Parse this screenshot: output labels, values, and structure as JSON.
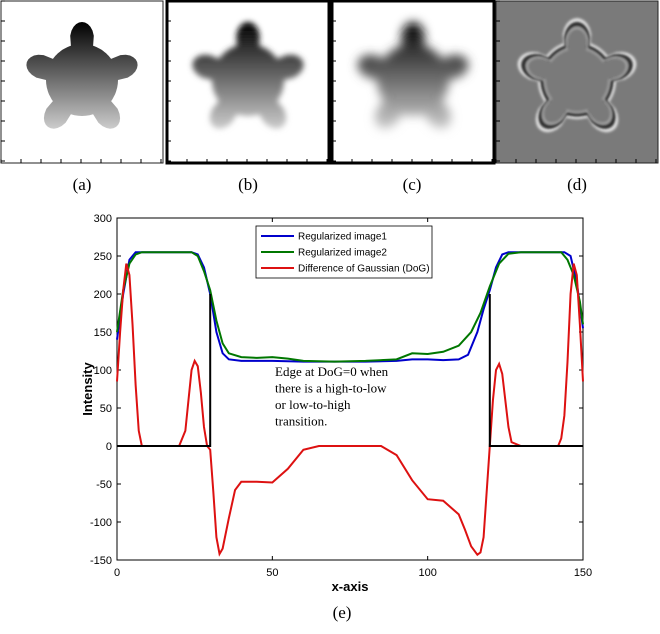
{
  "figure": {
    "panel_labels": [
      "(a)",
      "(b)",
      "(c)",
      "(d)"
    ],
    "chart_label": "(e)"
  },
  "chart_data": {
    "type": "line",
    "xlabel": "x-axis",
    "ylabel": "Intensity",
    "xlim": [
      0,
      150
    ],
    "xticks": [
      0,
      50,
      100,
      150
    ],
    "ylim": [
      -150,
      300
    ],
    "yticks": [
      -150,
      -100,
      -50,
      0,
      50,
      100,
      150,
      200,
      250,
      300
    ],
    "legend": "top-center",
    "annotation_lines": [
      "Edge at DoG=0 when",
      "there is a high-to-low",
      "or low-to-high",
      "transition."
    ],
    "series": [
      {
        "name": "Regularized image1",
        "color": "#0000cc",
        "x": [
          0,
          2,
          4,
          6,
          8,
          15,
          24,
          26,
          28,
          30,
          32,
          34,
          36,
          40,
          50,
          60,
          70,
          80,
          90,
          95,
          100,
          105,
          110,
          113,
          116,
          118,
          120,
          122,
          124,
          126,
          135,
          144,
          146,
          148,
          150
        ],
        "values": [
          140,
          200,
          245,
          255,
          255,
          255,
          255,
          252,
          235,
          200,
          150,
          122,
          114,
          112,
          112,
          111,
          111,
          111,
          112,
          114,
          114,
          113,
          114,
          120,
          150,
          180,
          205,
          235,
          252,
          255,
          255,
          255,
          250,
          215,
          155
        ]
      },
      {
        "name": "Regularized image2",
        "color": "#007700",
        "x": [
          0,
          2,
          4,
          6,
          8,
          15,
          24,
          26,
          28,
          30,
          32,
          34,
          36,
          40,
          45,
          50,
          55,
          60,
          70,
          80,
          90,
          95,
          100,
          105,
          110,
          114,
          117,
          120,
          123,
          126,
          130,
          135,
          143,
          145,
          147,
          149,
          150
        ],
        "values": [
          150,
          205,
          240,
          252,
          255,
          255,
          255,
          250,
          230,
          205,
          165,
          135,
          122,
          117,
          116,
          117,
          115,
          112,
          111,
          112,
          114,
          122,
          121,
          124,
          132,
          150,
          175,
          210,
          240,
          253,
          255,
          255,
          255,
          245,
          225,
          190,
          160
        ]
      },
      {
        "name": "Difference of Gaussian (DoG)",
        "color": "#dd1111",
        "x": [
          0,
          1,
          2,
          3,
          4,
          5,
          6,
          7,
          8,
          20,
          22,
          23,
          24,
          25,
          26,
          27,
          28,
          29,
          30,
          31,
          32,
          33,
          34,
          36,
          38,
          40,
          45,
          50,
          55,
          60,
          65,
          80,
          85,
          90,
          95,
          100,
          105,
          110,
          112,
          114,
          116,
          117,
          118,
          119,
          120,
          121,
          122,
          123,
          124,
          125,
          126,
          127,
          130,
          142,
          143,
          144,
          145,
          146,
          147,
          148,
          149,
          150
        ],
        "values": [
          85,
          150,
          205,
          240,
          225,
          160,
          80,
          20,
          0,
          0,
          20,
          60,
          100,
          112,
          105,
          70,
          25,
          0,
          -5,
          -60,
          -120,
          -142,
          -135,
          -95,
          -58,
          -47,
          -47,
          -48,
          -30,
          -5,
          0,
          0,
          0,
          -12,
          -45,
          -70,
          -72,
          -90,
          -110,
          -132,
          -143,
          -140,
          -120,
          -60,
          0,
          60,
          100,
          108,
          95,
          60,
          25,
          5,
          0,
          0,
          10,
          40,
          110,
          200,
          240,
          225,
          160,
          85
        ]
      },
      {
        "color": "#000000",
        "x": [
          0,
          30,
          30,
          120,
          120,
          120,
          150
        ],
        "values": [
          0,
          0,
          200,
          null,
          200,
          0,
          0
        ]
      }
    ]
  }
}
